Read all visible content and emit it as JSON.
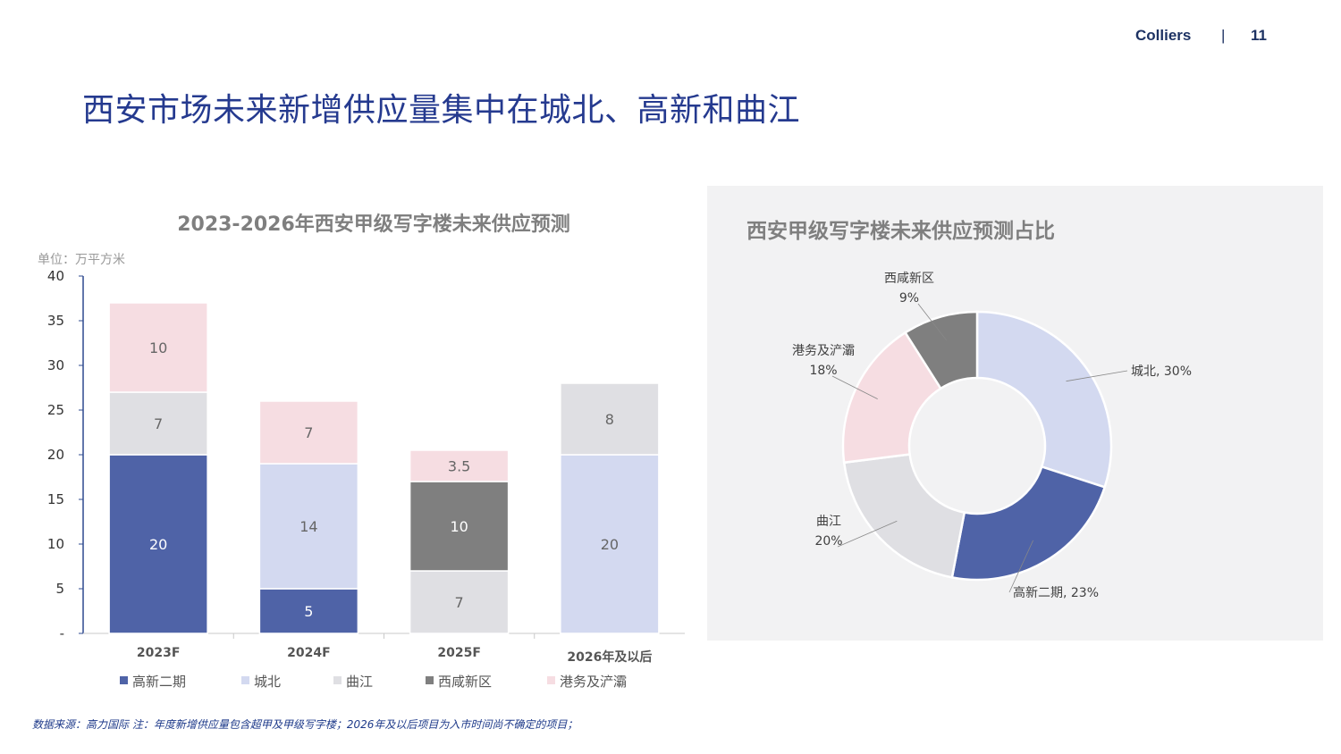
{
  "header": {
    "brand": "Colliers",
    "separator": "|",
    "page_number": "11"
  },
  "title": "西安市场未来新增供应量集中在城北、高新和曲江",
  "footnote": "数据来源：高力国际  注：年度新增供应量包含超甲及甲级写字楼；2026年及以后项目为入市时间尚不确定的项目；",
  "colors": {
    "gaoxin": "#4f63a7",
    "chengbei": "#d3d9f0",
    "qujiang": "#dfdfe3",
    "xixian": "#7f7f7f",
    "gangwu": "#f6dde2",
    "title": "#253a8f"
  },
  "chart_data": [
    {
      "type": "bar",
      "stacked": true,
      "title": "2023-2026年西安甲级写字楼未来供应预测",
      "unit_label": "单位：万平方米",
      "categories": [
        "2023F",
        "2024F",
        "2025F",
        "2026年及以后"
      ],
      "ylim": [
        0,
        40
      ],
      "yticks": [
        "-",
        "5",
        "10",
        "15",
        "20",
        "25",
        "30",
        "35",
        "40"
      ],
      "legend_position": "bottom",
      "series": [
        {
          "name": "高新二期",
          "values": [
            20,
            5,
            0,
            0
          ],
          "labels": [
            "20",
            "5",
            "",
            ""
          ]
        },
        {
          "name": "城北",
          "values": [
            0,
            14,
            0,
            20
          ],
          "labels": [
            "",
            "14",
            "",
            "20"
          ]
        },
        {
          "name": "曲江",
          "values": [
            7,
            0,
            7,
            8
          ],
          "labels": [
            "7",
            "",
            "7",
            "8"
          ]
        },
        {
          "name": "西咸新区",
          "values": [
            0,
            0,
            10,
            0
          ],
          "labels": [
            "",
            "",
            "10",
            ""
          ]
        },
        {
          "name": "港务及浐灞",
          "values": [
            10,
            7,
            3.5,
            0
          ],
          "labels": [
            "10",
            "7",
            "3.5",
            ""
          ]
        }
      ]
    },
    {
      "type": "pie",
      "donut": true,
      "title": "西安甲级写字楼未来供应预测占比",
      "slices": [
        {
          "name": "城北",
          "value": 30,
          "label": "城北, 30%"
        },
        {
          "name": "高新二期",
          "value": 23,
          "label": "高新二期, 23%"
        },
        {
          "name": "曲江",
          "value": 20,
          "label": "曲江\n20%"
        },
        {
          "name": "港务及浐灞",
          "value": 18,
          "label": "港务及浐灞\n18%"
        },
        {
          "name": "西咸新区",
          "value": 9,
          "label": "西咸新区\n9%"
        }
      ]
    }
  ]
}
